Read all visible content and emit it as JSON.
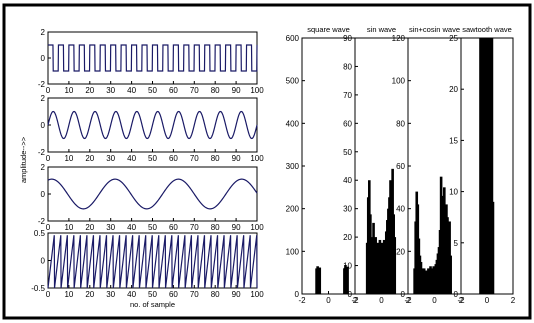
{
  "chart_data": [
    {
      "type": "line",
      "title": "",
      "xlabel": "",
      "ylabel": "amplitude-->>",
      "xlim": [
        0,
        100
      ],
      "ylim": [
        -2,
        2
      ],
      "xticks": [
        "0",
        "10",
        "20",
        "30",
        "40",
        "50",
        "60",
        "70",
        "80",
        "90",
        "100"
      ],
      "yticks": [
        "-2",
        "0",
        "2"
      ],
      "waveform": "square",
      "amplitude": 1,
      "cycles": 20,
      "color": "#1a1a66"
    },
    {
      "type": "line",
      "title": "",
      "xlabel": "",
      "ylabel": "",
      "xlim": [
        0,
        100
      ],
      "ylim": [
        -2,
        2
      ],
      "xticks": [
        "0",
        "10",
        "20",
        "30",
        "40",
        "50",
        "60",
        "70",
        "80",
        "90",
        "100"
      ],
      "yticks": [
        "-2",
        "0",
        "2"
      ],
      "waveform": "sin",
      "amplitude": 1,
      "cycles": 10,
      "color": "#1a1a66"
    },
    {
      "type": "line",
      "title": "",
      "xlabel": "",
      "ylabel": "",
      "xlim": [
        0,
        100
      ],
      "ylim": [
        -2,
        2
      ],
      "xticks": [
        "0",
        "10",
        "20",
        "30",
        "40",
        "50",
        "60",
        "70",
        "80",
        "90",
        "100"
      ],
      "yticks": [
        "-2",
        "0",
        "2"
      ],
      "waveform": "sin+cosin",
      "amplitude": 1.1,
      "cycles": 3.3,
      "color": "#1a1a66"
    },
    {
      "type": "line",
      "title": "",
      "xlabel": "no. of sample",
      "ylabel": "",
      "xlim": [
        0,
        100
      ],
      "ylim": [
        -0.5,
        0.5
      ],
      "xticks": [
        "0",
        "10",
        "20",
        "30",
        "40",
        "50",
        "60",
        "70",
        "80",
        "90",
        "100"
      ],
      "yticks": [
        "-0.5",
        "0",
        "0.5"
      ],
      "waveform": "sawtooth",
      "amplitude": 0.5,
      "cycles": 32,
      "color": "#1a1a66"
    },
    {
      "type": "bar",
      "title": "square wave",
      "xlim": [
        -2,
        2
      ],
      "ylim": [
        0,
        600
      ],
      "xticks": [
        "-2",
        "0",
        "2"
      ],
      "yticks": [
        "0",
        "100",
        "200",
        "300",
        "400",
        "500",
        "600"
      ],
      "bin_edges": [
        -0.95,
        1.2
      ],
      "bins": [
        {
          "x": -0.9,
          "v": 60
        },
        {
          "x": -0.82,
          "v": 65
        },
        {
          "x": -0.74,
          "v": 55
        },
        {
          "x": -0.66,
          "v": 62
        },
        {
          "x": 1.2,
          "v": 60
        },
        {
          "x": 1.28,
          "v": 68
        },
        {
          "x": 1.36,
          "v": 56
        },
        {
          "x": 1.44,
          "v": 64
        }
      ],
      "color": "#000000"
    },
    {
      "type": "bar",
      "title": "sin wave",
      "xlim": [
        -2,
        2
      ],
      "ylim": [
        0,
        90
      ],
      "xticks": [
        "-2",
        "0",
        "2"
      ],
      "yticks": [
        "0",
        "10",
        "20",
        "30",
        "40",
        "50",
        "60",
        "70",
        "80",
        "90"
      ],
      "bins": [
        {
          "x": -1.08,
          "v": 18
        },
        {
          "x": -1.0,
          "v": 34
        },
        {
          "x": -0.92,
          "v": 40
        },
        {
          "x": -0.84,
          "v": 28
        },
        {
          "x": -0.76,
          "v": 20
        },
        {
          "x": -0.68,
          "v": 18
        },
        {
          "x": -0.6,
          "v": 25
        },
        {
          "x": -0.52,
          "v": 16
        },
        {
          "x": -0.44,
          "v": 20
        },
        {
          "x": -0.36,
          "v": 15
        },
        {
          "x": -0.28,
          "v": 18
        },
        {
          "x": -0.2,
          "v": 16
        },
        {
          "x": -0.12,
          "v": 19
        },
        {
          "x": -0.04,
          "v": 17
        },
        {
          "x": 0.04,
          "v": 18
        },
        {
          "x": 0.12,
          "v": 16
        },
        {
          "x": 0.2,
          "v": 19
        },
        {
          "x": 0.28,
          "v": 17
        },
        {
          "x": 0.36,
          "v": 22
        },
        {
          "x": 0.44,
          "v": 26
        },
        {
          "x": 0.52,
          "v": 30
        },
        {
          "x": 0.6,
          "v": 34
        },
        {
          "x": 0.68,
          "v": 40
        },
        {
          "x": 0.76,
          "v": 38
        },
        {
          "x": 0.84,
          "v": 44
        },
        {
          "x": 0.92,
          "v": 28
        },
        {
          "x": 1.0,
          "v": 20
        }
      ],
      "color": "#000000"
    },
    {
      "type": "bar",
      "title": "sin+cosin wave",
      "xlim": [
        -2,
        2
      ],
      "ylim": [
        0,
        120
      ],
      "xticks": [
        "-2",
        "0",
        "2"
      ],
      "yticks": [
        "0",
        "20",
        "40",
        "60",
        "80",
        "100",
        "120"
      ],
      "bins": [
        {
          "x": -1.5,
          "v": 12
        },
        {
          "x": -1.42,
          "v": 34
        },
        {
          "x": -1.34,
          "v": 48
        },
        {
          "x": -1.26,
          "v": 42
        },
        {
          "x": -1.18,
          "v": 26
        },
        {
          "x": -1.1,
          "v": 18
        },
        {
          "x": -1.02,
          "v": 15
        },
        {
          "x": -0.94,
          "v": 12
        },
        {
          "x": -0.86,
          "v": 10
        },
        {
          "x": -0.78,
          "v": 12
        },
        {
          "x": -0.7,
          "v": 9
        },
        {
          "x": -0.62,
          "v": 11
        },
        {
          "x": -0.54,
          "v": 10
        },
        {
          "x": -0.46,
          "v": 12
        },
        {
          "x": -0.38,
          "v": 11
        },
        {
          "x": -0.3,
          "v": 13
        },
        {
          "x": -0.22,
          "v": 12
        },
        {
          "x": -0.14,
          "v": 10
        },
        {
          "x": -0.06,
          "v": 13
        },
        {
          "x": 0.02,
          "v": 12
        },
        {
          "x": 0.1,
          "v": 14
        },
        {
          "x": 0.18,
          "v": 16
        },
        {
          "x": 0.26,
          "v": 19
        },
        {
          "x": 0.34,
          "v": 22
        },
        {
          "x": 0.42,
          "v": 30
        },
        {
          "x": 0.5,
          "v": 55
        },
        {
          "x": 0.58,
          "v": 38
        },
        {
          "x": 0.66,
          "v": 46
        },
        {
          "x": 0.74,
          "v": 50
        },
        {
          "x": 0.82,
          "v": 40
        },
        {
          "x": 0.9,
          "v": 42
        },
        {
          "x": 0.98,
          "v": 36
        },
        {
          "x": 1.06,
          "v": 28
        },
        {
          "x": 1.14,
          "v": 34
        },
        {
          "x": 1.22,
          "v": 18
        }
      ],
      "color": "#000000"
    },
    {
      "type": "bar",
      "title": "sawtooth wave",
      "xlim": [
        -2,
        2
      ],
      "ylim": [
        0,
        25
      ],
      "xticks": [
        "-2",
        "0",
        "2"
      ],
      "yticks": [
        "0",
        "5",
        "10",
        "15",
        "20",
        "25"
      ],
      "bins": [
        {
          "x": -0.5,
          "v": 25
        },
        {
          "x": -0.42,
          "v": 25
        },
        {
          "x": -0.34,
          "v": 25
        },
        {
          "x": -0.26,
          "v": 25
        },
        {
          "x": -0.18,
          "v": 25
        },
        {
          "x": -0.1,
          "v": 25
        },
        {
          "x": -0.02,
          "v": 25
        },
        {
          "x": 0.06,
          "v": 25
        },
        {
          "x": 0.14,
          "v": 25
        },
        {
          "x": 0.22,
          "v": 25
        },
        {
          "x": 0.3,
          "v": 25
        },
        {
          "x": 0.38,
          "v": 25
        },
        {
          "x": 0.46,
          "v": 9
        }
      ],
      "color": "#000000"
    }
  ]
}
